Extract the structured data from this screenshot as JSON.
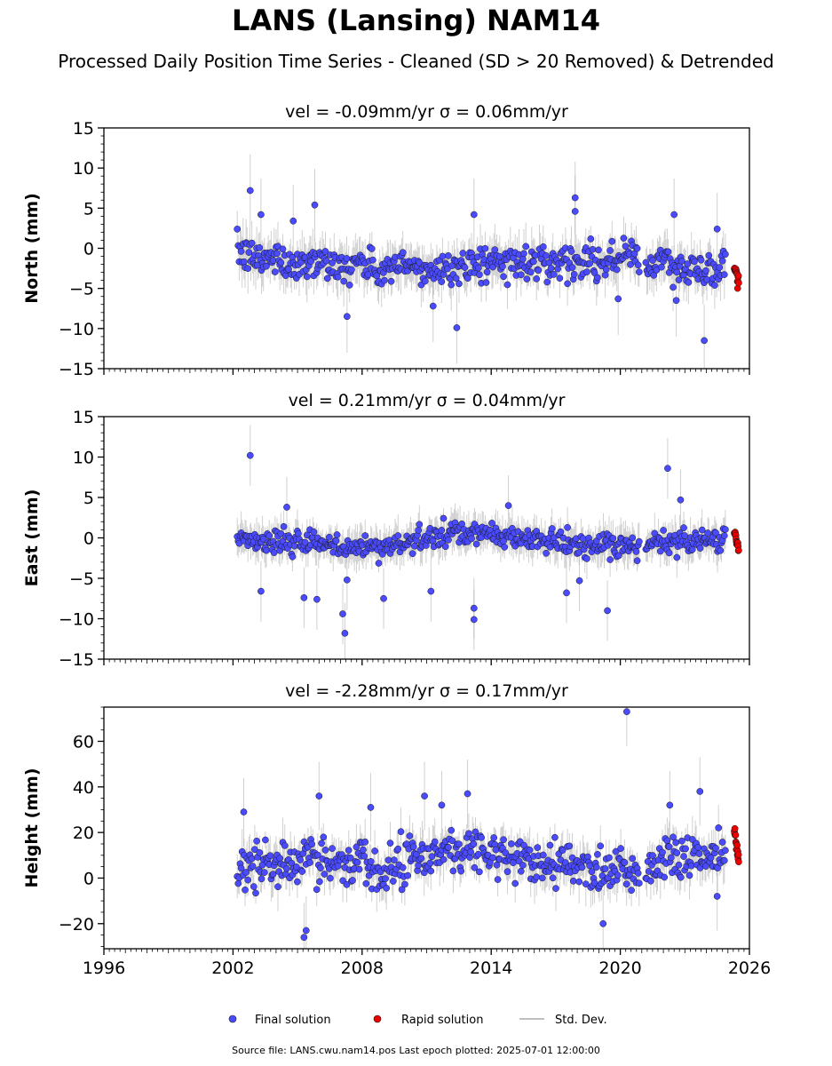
{
  "title": "LANS (Lansing) NAM14",
  "subtitle": "Processed Daily Position Time Series - Cleaned (SD > 20 Removed) & Detrended",
  "footer": "Source file: LANS.cwu.nam14.pos  Last epoch plotted: 2025-07-01 12:00:00",
  "colors": {
    "final": "#4a4aff",
    "rapid": "#ee0000",
    "stddev": "#aaaaaa",
    "marker_edge": "#1a1a1a"
  },
  "legend": [
    {
      "label": "Final solution",
      "kind": "final"
    },
    {
      "label": "Rapid solution",
      "kind": "rapid"
    },
    {
      "label": "Std. Dev.",
      "kind": "stddev"
    }
  ],
  "chart_data": [
    {
      "type": "scatter",
      "title": "vel = -0.09mm/yr   σ = 0.06mm/yr",
      "ylabel": "North (mm)",
      "xlim": [
        1996,
        2026
      ],
      "ylim": [
        -15,
        15
      ],
      "yticks": [
        -15,
        -10,
        -5,
        0,
        5,
        10,
        15
      ],
      "ytick_labels": [
        "−15",
        "−10",
        "−5",
        "0",
        "5",
        "10",
        "15"
      ],
      "xticks": [
        1996,
        2002,
        2008,
        2014,
        2020,
        2026
      ],
      "xtick_labels": [],
      "final_range": [
        2002.2,
        2024.9
      ],
      "rapid_range": [
        2025.3,
        2025.5
      ],
      "series": [
        {
          "kind": "final",
          "x": [
            2002.3,
            2002.6,
            2003.0,
            2003.5,
            2004.0,
            2004.5,
            2005.0,
            2005.5,
            2006.0,
            2006.5,
            2007.0,
            2007.5,
            2008.0,
            2008.5,
            2009.0,
            2009.5,
            2010.0,
            2010.5,
            2011.0,
            2011.5,
            2012.0,
            2012.5,
            2013.0,
            2013.5,
            2014.0,
            2014.5,
            2015.0,
            2015.5,
            2016.0,
            2016.5,
            2017.0,
            2017.5,
            2018.0,
            2018.5,
            2019.0,
            2019.5,
            2020.0,
            2020.5,
            2021.0,
            2021.5,
            2022.0,
            2022.5,
            2023.0,
            2023.5,
            2024.0,
            2024.5,
            2024.9
          ],
          "y": [
            -0.5,
            -1.0,
            -1.2,
            -1.5,
            -1.0,
            -1.8,
            -2.0,
            -1.5,
            -1.2,
            -2.2,
            -2.5,
            -1.8,
            -2.0,
            -2.6,
            -2.8,
            -2.4,
            -2.2,
            -2.6,
            -2.9,
            -2.5,
            -2.4,
            -2.3,
            -2.0,
            -1.8,
            -1.6,
            -1.8,
            -1.9,
            -1.7,
            -1.5,
            -1.6,
            -1.7,
            -1.5,
            -1.4,
            -1.6,
            -1.5,
            -1.4,
            -1.5,
            -0.5,
            -1.8,
            -2.0,
            -1.5,
            -2.8,
            -2.6,
            -2.5,
            -2.8,
            -2.5,
            -2.2
          ]
        },
        {
          "kind": "rapid",
          "x": [
            2025.35,
            2025.4,
            2025.45,
            2025.5
          ],
          "y": [
            -2.5,
            -3.2,
            -3.8,
            -4.1
          ]
        }
      ],
      "outliers": [
        {
          "x": 2002.8,
          "y": 7.2
        },
        {
          "x": 2003.3,
          "y": 4.2
        },
        {
          "x": 2004.8,
          "y": 3.4
        },
        {
          "x": 2005.8,
          "y": 5.4
        },
        {
          "x": 2007.3,
          "y": -8.5
        },
        {
          "x": 2011.3,
          "y": -7.2
        },
        {
          "x": 2012.4,
          "y": -9.9
        },
        {
          "x": 2013.2,
          "y": 4.2
        },
        {
          "x": 2017.9,
          "y": 6.3
        },
        {
          "x": 2017.9,
          "y": 4.6
        },
        {
          "x": 2019.9,
          "y": -6.3
        },
        {
          "x": 2022.5,
          "y": 4.2
        },
        {
          "x": 2022.6,
          "y": -6.5
        },
        {
          "x": 2023.9,
          "y": -11.5
        },
        {
          "x": 2024.5,
          "y": 2.4
        }
      ]
    },
    {
      "type": "scatter",
      "title": "vel = 0.21mm/yr   σ = 0.04mm/yr",
      "ylabel": "East (mm)",
      "xlim": [
        1996,
        2026
      ],
      "ylim": [
        -15,
        15
      ],
      "yticks": [
        -15,
        -10,
        -5,
        0,
        5,
        10,
        15
      ],
      "ytick_labels": [
        "−15",
        "−10",
        "−5",
        "0",
        "5",
        "10",
        "15"
      ],
      "xticks": [
        1996,
        2002,
        2008,
        2014,
        2020,
        2026
      ],
      "xtick_labels": [],
      "final_range": [
        2002.2,
        2024.9
      ],
      "rapid_range": [
        2025.3,
        2025.5
      ],
      "series": [
        {
          "kind": "final",
          "x": [
            2002.3,
            2002.6,
            2003.0,
            2003.5,
            2004.0,
            2004.5,
            2005.0,
            2005.5,
            2006.0,
            2006.5,
            2007.0,
            2007.5,
            2008.0,
            2008.5,
            2009.0,
            2009.5,
            2010.0,
            2010.5,
            2011.0,
            2011.5,
            2012.0,
            2012.5,
            2013.0,
            2013.5,
            2014.0,
            2014.5,
            2015.0,
            2015.5,
            2016.0,
            2016.5,
            2017.0,
            2017.5,
            2018.0,
            2018.5,
            2019.0,
            2019.5,
            2020.0,
            2020.5,
            2021.0,
            2021.5,
            2022.0,
            2022.5,
            2023.0,
            2023.5,
            2024.0,
            2024.5,
            2024.9
          ],
          "y": [
            0.2,
            -0.3,
            -0.6,
            -0.5,
            -0.4,
            -0.6,
            -0.8,
            -0.5,
            -0.9,
            -1.0,
            -1.2,
            -1.1,
            -1.3,
            -1.2,
            -1.0,
            -0.9,
            -0.6,
            -0.4,
            -0.1,
            0.2,
            0.3,
            0.4,
            0.5,
            0.5,
            0.4,
            0.2,
            0.1,
            0.0,
            -0.2,
            -0.3,
            -0.5,
            -0.8,
            -0.9,
            -1.1,
            -1.2,
            -1.3,
            -1.0,
            -1.5,
            -0.8,
            -0.4,
            -0.6,
            -0.5,
            -0.3,
            -0.4,
            -0.2,
            -0.1,
            0.0
          ]
        },
        {
          "kind": "rapid",
          "x": [
            2025.35,
            2025.4,
            2025.45,
            2025.5
          ],
          "y": [
            0.6,
            -0.2,
            -0.8,
            -1.4
          ]
        }
      ],
      "outliers": [
        {
          "x": 2002.8,
          "y": 10.2
        },
        {
          "x": 2003.3,
          "y": -6.6
        },
        {
          "x": 2004.5,
          "y": 3.8
        },
        {
          "x": 2005.3,
          "y": -7.4
        },
        {
          "x": 2005.9,
          "y": -7.6
        },
        {
          "x": 2007.1,
          "y": -9.4
        },
        {
          "x": 2007.2,
          "y": -11.8
        },
        {
          "x": 2007.3,
          "y": -5.2
        },
        {
          "x": 2009.0,
          "y": -7.5
        },
        {
          "x": 2011.2,
          "y": -6.6
        },
        {
          "x": 2013.2,
          "y": -8.7
        },
        {
          "x": 2013.2,
          "y": -10.1
        },
        {
          "x": 2014.8,
          "y": 4.0
        },
        {
          "x": 2017.5,
          "y": -6.8
        },
        {
          "x": 2018.1,
          "y": -5.3
        },
        {
          "x": 2019.4,
          "y": -9.0
        },
        {
          "x": 2022.2,
          "y": 8.6
        },
        {
          "x": 2022.8,
          "y": 4.7
        }
      ]
    },
    {
      "type": "scatter",
      "title": "vel = -2.28mm/yr   σ = 0.17mm/yr",
      "ylabel": "Height (mm)",
      "xlim": [
        1996,
        2026
      ],
      "ylim": [
        -31,
        75
      ],
      "yticks": [
        -20,
        0,
        20,
        40,
        60
      ],
      "ytick_labels": [
        "−20",
        "0",
        "20",
        "40",
        "60"
      ],
      "xticks": [
        1996,
        2002,
        2008,
        2014,
        2020,
        2026
      ],
      "xtick_labels": [
        "1996",
        "2002",
        "2008",
        "2014",
        "2020",
        "2026"
      ],
      "final_range": [
        2002.2,
        2024.9
      ],
      "rapid_range": [
        2025.3,
        2025.5
      ],
      "series": [
        {
          "kind": "final",
          "x": [
            2002.3,
            2002.6,
            2003.0,
            2003.5,
            2004.0,
            2004.5,
            2005.0,
            2005.5,
            2006.0,
            2006.5,
            2007.0,
            2007.5,
            2008.0,
            2008.5,
            2009.0,
            2009.5,
            2010.0,
            2010.5,
            2011.0,
            2011.5,
            2012.0,
            2012.5,
            2013.0,
            2013.5,
            2014.0,
            2014.5,
            2015.0,
            2015.5,
            2016.0,
            2016.5,
            2017.0,
            2017.5,
            2018.0,
            2018.5,
            2019.0,
            2019.5,
            2020.0,
            2020.5,
            2021.0,
            2021.5,
            2022.0,
            2022.5,
            2023.0,
            2023.5,
            2024.0,
            2024.5,
            2024.9
          ],
          "y": [
            5,
            8,
            4,
            6,
            3,
            7,
            5,
            9,
            8,
            6,
            9,
            7,
            8,
            6,
            5,
            7,
            8,
            10,
            9,
            11,
            12,
            13,
            15,
            12,
            10,
            9,
            8,
            7,
            6,
            8,
            7,
            6,
            5,
            6,
            4,
            5,
            6,
            3,
            2,
            5,
            8,
            12,
            11,
            10,
            9,
            12,
            10
          ]
        },
        {
          "kind": "rapid",
          "x": [
            2025.35,
            2025.4,
            2025.45,
            2025.5
          ],
          "y": [
            19,
            14,
            11,
            8
          ]
        }
      ],
      "outliers": [
        {
          "x": 2002.5,
          "y": 29
        },
        {
          "x": 2005.3,
          "y": -26
        },
        {
          "x": 2005.4,
          "y": -23
        },
        {
          "x": 2006.0,
          "y": 36
        },
        {
          "x": 2008.4,
          "y": 31
        },
        {
          "x": 2010.9,
          "y": 36
        },
        {
          "x": 2011.7,
          "y": 32
        },
        {
          "x": 2012.9,
          "y": 37
        },
        {
          "x": 2019.2,
          "y": -20
        },
        {
          "x": 2020.3,
          "y": 73
        },
        {
          "x": 2022.3,
          "y": 32
        },
        {
          "x": 2023.7,
          "y": 38
        },
        {
          "x": 2024.5,
          "y": -8
        }
      ]
    }
  ]
}
